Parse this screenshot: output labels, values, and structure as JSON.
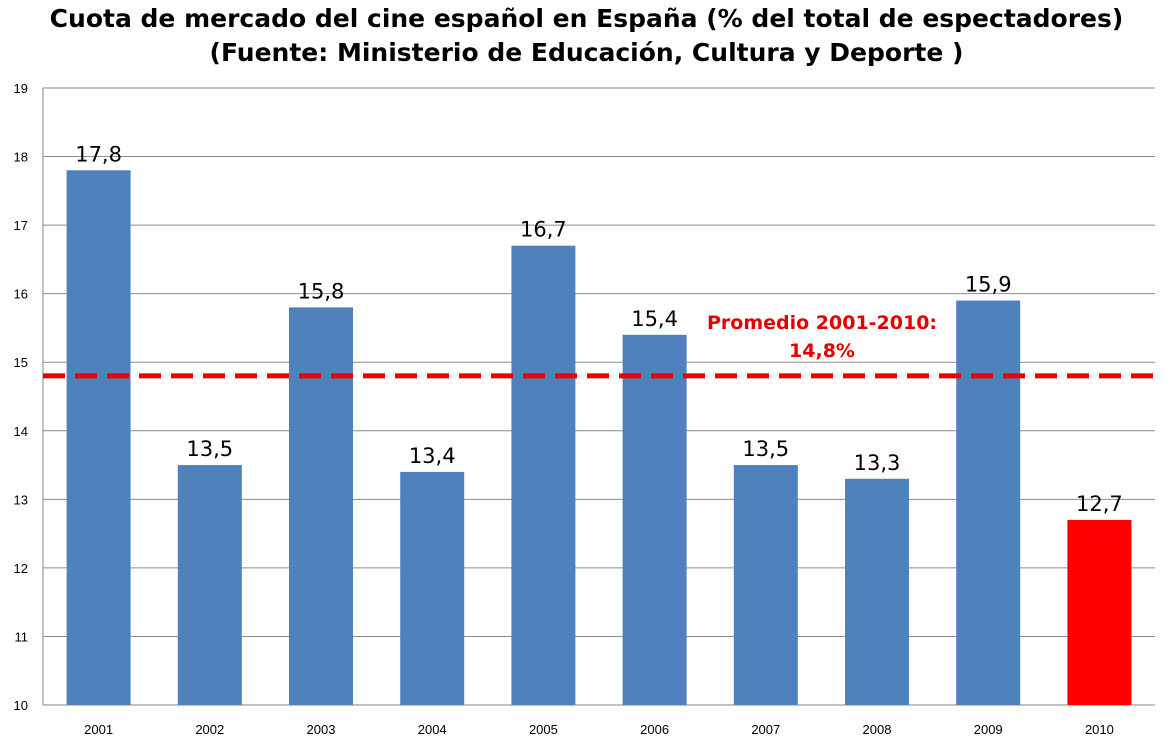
{
  "chart_data": {
    "type": "bar",
    "title": "Cuota de mercado del cine español en España (% del total de espectadores)",
    "subtitle": "(Fuente: Ministerio de Educación, Cultura y Deporte )",
    "categories": [
      "2001",
      "2002",
      "2003",
      "2004",
      "2005",
      "2006",
      "2007",
      "2008",
      "2009",
      "2010"
    ],
    "values": [
      17.8,
      13.5,
      15.8,
      13.4,
      16.7,
      15.4,
      13.5,
      13.3,
      15.9,
      12.7
    ],
    "value_labels": [
      "17,8",
      "13,5",
      "15,8",
      "13,4",
      "16,7",
      "15,4",
      "13,5",
      "13,3",
      "15,9",
      "12,7"
    ],
    "ylim": [
      10,
      19
    ],
    "yticks": [
      "10",
      "11",
      "12",
      "13",
      "14",
      "15",
      "16",
      "17",
      "18",
      "19"
    ],
    "grid": true,
    "bar_color": "#4f81bd",
    "highlight_color": "#ff0000",
    "highlight_category": "2010",
    "average": {
      "value": 14.8,
      "label_line1": "Promedio 2001-2010:",
      "label_line2": "14,8%",
      "color": "#e60000"
    }
  }
}
